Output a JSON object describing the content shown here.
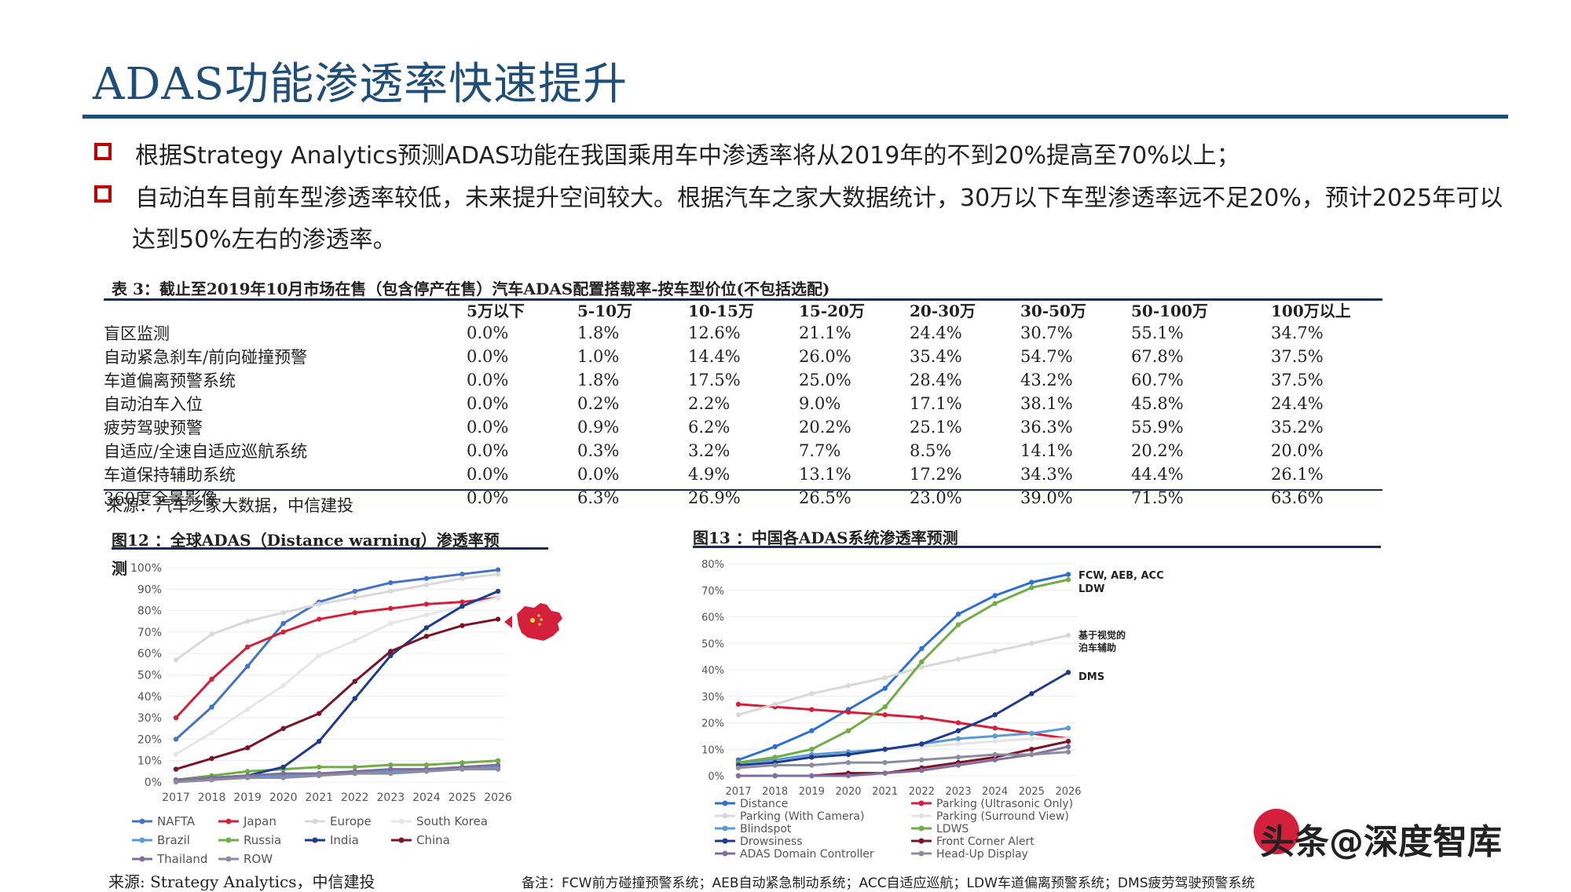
{
  "title": "ADAS功能渗透率快速提升",
  "bullets": [
    "根据Strategy Analytics预测ADAS功能在我国乘用车中渗透率将从2019年的不到20%提高至70%以上；",
    "自动泊车目前车型渗透率较低，未来提升空间较大。根据汽车之家大数据统计，30万以下车型渗透率远不足20%，预计2025年可以",
    "达到50%左右的渗透率。"
  ],
  "table": {
    "title": "表 3：截止至2019年10月市场在售（包含停产在售）汽车ADAS配置搭载率-按车型价位(不包括选配)",
    "headers": [
      "",
      "5万以下",
      "5-10万",
      "10-15万",
      "15-20万",
      "20-30万",
      "30-50万",
      "50-100万",
      "100万以上"
    ],
    "rows": [
      [
        "盲区监测",
        "0.0%",
        "1.8%",
        "12.6%",
        "21.1%",
        "24.4%",
        "30.7%",
        "55.1%",
        "34.7%"
      ],
      [
        "自动紧急刹车/前向碰撞预警",
        "0.0%",
        "1.0%",
        "14.4%",
        "26.0%",
        "35.4%",
        "54.7%",
        "67.8%",
        "37.5%"
      ],
      [
        "车道偏离预警系统",
        "0.0%",
        "1.8%",
        "17.5%",
        "25.0%",
        "28.4%",
        "43.2%",
        "60.7%",
        "37.5%"
      ],
      [
        "自动泊车入位",
        "0.0%",
        "0.2%",
        "2.2%",
        "9.0%",
        "17.1%",
        "38.1%",
        "45.8%",
        "24.4%"
      ],
      [
        "疲劳驾驶预警",
        "0.0%",
        "0.9%",
        "6.2%",
        "20.2%",
        "25.1%",
        "36.3%",
        "55.9%",
        "35.2%"
      ],
      [
        "自适应/全速自适应巡航系统",
        "0.0%",
        "0.3%",
        "3.2%",
        "7.7%",
        "8.5%",
        "14.1%",
        "20.2%",
        "20.0%"
      ],
      [
        "车道保持辅助系统",
        "0.0%",
        "0.0%",
        "4.9%",
        "13.1%",
        "17.2%",
        "34.3%",
        "44.4%",
        "26.1%"
      ],
      [
        "360度全景影像",
        "0.0%",
        "6.3%",
        "26.9%",
        "26.5%",
        "23.0%",
        "39.0%",
        "71.5%",
        "63.6%"
      ]
    ],
    "source": "来源：汽车之家大数据，中信建投"
  },
  "fig12": {
    "title_line1": "图12 ：全球ADAS（Distance warning）渗透率预",
    "title_line2": "测",
    "source": "来源:  Strategy Analytics，中信建投"
  },
  "fig13": {
    "title": "图13 ：中国各ADAS系统渗透率预测",
    "annotations": [
      "FCW, AEB, ACC",
      "LDW",
      "基于视觉的",
      "泊车辅助",
      "DMS"
    ]
  },
  "footnote": "备注：FCW前方碰撞预警系统；AEB自动紧急制动系统；ACC自适应巡航；LDW车道偏离预警系统；DMS疲劳驾驶预警系统",
  "watermark": "头条@深度智库",
  "chart_data": [
    {
      "type": "line",
      "x": [
        2017,
        2018,
        2019,
        2020,
        2021,
        2022,
        2023,
        2024,
        2025,
        2026
      ],
      "ylim": [
        0,
        100
      ],
      "yticks": [
        "0%",
        "10%",
        "20%",
        "30%",
        "40%",
        "50%",
        "60%",
        "70%",
        "80%",
        "90%",
        "100%"
      ],
      "series": [
        {
          "name": "NAFTA",
          "color": "#4472c4",
          "values": [
            20,
            35,
            54,
            74,
            84,
            89,
            93,
            95,
            97,
            99
          ]
        },
        {
          "name": "Japan",
          "color": "#d3203b",
          "values": [
            30,
            48,
            63,
            70,
            76,
            79,
            81,
            83,
            84,
            86
          ]
        },
        {
          "name": "Europe",
          "color": "#d9d9d9",
          "values": [
            57,
            69,
            75,
            79,
            83,
            86,
            89,
            92,
            95,
            97
          ]
        },
        {
          "name": "South Korea",
          "color": "#e7e6e6",
          "values": [
            13,
            23,
            34,
            45,
            59,
            66,
            74,
            78,
            82,
            86
          ]
        },
        {
          "name": "Brazil",
          "color": "#5b9bd5",
          "values": [
            1,
            2,
            3,
            3,
            4,
            4,
            5,
            6,
            6,
            7
          ]
        },
        {
          "name": "Russia",
          "color": "#70ad47",
          "values": [
            1,
            3,
            5,
            6,
            7,
            7,
            8,
            8,
            9,
            10
          ]
        },
        {
          "name": "India",
          "color": "#1f3b8c",
          "values": [
            1,
            2,
            3,
            7,
            19,
            39,
            59,
            72,
            82,
            89
          ]
        },
        {
          "name": "China",
          "color": "#7b1428",
          "values": [
            6,
            11,
            16,
            25,
            32,
            47,
            61,
            68,
            73,
            76
          ]
        },
        {
          "name": "Thailand",
          "color": "#7f6f9f",
          "values": [
            1,
            2,
            3,
            4,
            4,
            5,
            6,
            6,
            7,
            8
          ]
        },
        {
          "name": "ROW",
          "color": "#8c8ca0",
          "values": [
            0,
            1,
            2,
            2,
            3,
            4,
            4,
            5,
            6,
            6
          ]
        }
      ]
    },
    {
      "type": "line",
      "x": [
        2017,
        2018,
        2019,
        2020,
        2021,
        2022,
        2023,
        2024,
        2025,
        2026
      ],
      "ylim": [
        0,
        80
      ],
      "yticks": [
        "0%",
        "10%",
        "20%",
        "30%",
        "40%",
        "50%",
        "60%",
        "70%",
        "80%"
      ],
      "series": [
        {
          "name": "Distance",
          "color": "#2e6fd6",
          "values": [
            6,
            11,
            17,
            25,
            33,
            48,
            61,
            68,
            73,
            76
          ]
        },
        {
          "name": "Parking (Ultrasonic Only)",
          "color": "#d3203b",
          "values": [
            27,
            26,
            25,
            24,
            23,
            22,
            20,
            18,
            16,
            14
          ]
        },
        {
          "name": "Parking (With Camera)",
          "color": "#d9d9d9",
          "values": [
            23,
            27,
            31,
            34,
            37,
            41,
            44,
            47,
            50,
            53
          ]
        },
        {
          "name": "Parking (Surround View)",
          "color": "#e3e3e3",
          "values": [
            4,
            6,
            8,
            9,
            10,
            11,
            12,
            13,
            14,
            14
          ]
        },
        {
          "name": "Blindspot",
          "color": "#5b9bd5",
          "values": [
            5,
            6,
            8,
            9,
            10,
            12,
            14,
            15,
            16,
            18
          ]
        },
        {
          "name": "LDWS",
          "color": "#70ad47",
          "values": [
            5,
            7,
            10,
            17,
            26,
            43,
            57,
            65,
            71,
            74
          ]
        },
        {
          "name": "Drowsiness",
          "color": "#1f3b8c",
          "values": [
            4,
            5,
            7,
            8,
            10,
            12,
            17,
            23,
            31,
            39
          ]
        },
        {
          "name": "Front Corner Alert",
          "color": "#7b1428",
          "values": [
            0,
            0,
            0,
            1,
            1,
            3,
            5,
            7,
            10,
            13
          ]
        },
        {
          "name": "ADAS Domain Controller",
          "color": "#7f6f9f",
          "values": [
            0,
            0,
            0,
            0,
            1,
            2,
            4,
            6,
            8,
            11
          ]
        },
        {
          "name": "Head-Up Display",
          "color": "#8c8ca0",
          "values": [
            3,
            4,
            4,
            5,
            5,
            6,
            7,
            8,
            8,
            9
          ]
        }
      ]
    }
  ]
}
